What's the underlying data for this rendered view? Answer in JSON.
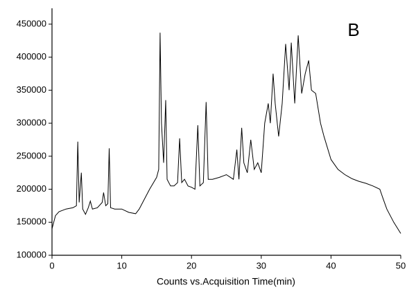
{
  "chart_data": {
    "type": "line",
    "annotation": "B",
    "x_label": "Counts vs.Acquisition Time(min)",
    "xlim": [
      0,
      50
    ],
    "xticks": [
      0,
      10,
      20,
      30,
      40,
      50
    ],
    "ylim": [
      100000,
      474000
    ],
    "yticks": [
      100000,
      150000,
      200000,
      250000,
      300000,
      350000,
      400000,
      450000
    ],
    "grid": false,
    "series": [
      {
        "color": "#000000",
        "x": [
          0,
          0.5,
          1,
          2,
          3,
          3.5,
          3.7,
          3.9,
          4.2,
          4.4,
          4.8,
          5.2,
          5.5,
          5.8,
          6.5,
          7.2,
          7.4,
          7.7,
          8.0,
          8.2,
          8.4,
          9,
          10,
          11,
          12,
          12.5,
          13,
          14,
          15,
          15.3,
          15.5,
          15.7,
          16,
          16.3,
          16.5,
          17,
          17.5,
          18,
          18.3,
          18.6,
          19,
          19.5,
          20,
          20.5,
          20.9,
          21.2,
          21.7,
          22.1,
          22.4,
          23,
          24,
          25,
          26,
          26.5,
          26.8,
          27.2,
          27.5,
          28,
          28.5,
          29,
          29.5,
          30,
          30.5,
          31,
          31.3,
          31.7,
          32,
          32.5,
          33,
          33.5,
          34,
          34.3,
          34.8,
          35.3,
          35.8,
          36.3,
          36.8,
          37.2,
          37.8,
          38.5,
          39,
          40,
          41,
          42,
          43,
          44,
          45,
          46,
          47,
          47.5,
          48,
          49,
          50
        ],
        "values": [
          140000,
          160000,
          166000,
          170000,
          172000,
          175000,
          272000,
          180000,
          225000,
          170000,
          162000,
          172000,
          182000,
          170000,
          172000,
          180000,
          195000,
          175000,
          178000,
          262000,
          172000,
          170000,
          170000,
          165000,
          163000,
          170000,
          180000,
          200000,
          218000,
          230000,
          437000,
          300000,
          240000,
          335000,
          215000,
          205000,
          205000,
          210000,
          277000,
          210000,
          215000,
          205000,
          203000,
          200000,
          297000,
          205000,
          210000,
          332000,
          215000,
          215000,
          218000,
          222000,
          215000,
          260000,
          215000,
          293000,
          240000,
          225000,
          275000,
          230000,
          240000,
          225000,
          300000,
          330000,
          300000,
          375000,
          330000,
          280000,
          330000,
          420000,
          350000,
          422000,
          330000,
          433000,
          345000,
          375000,
          395000,
          350000,
          345000,
          300000,
          280000,
          245000,
          230000,
          222000,
          216000,
          212000,
          209000,
          205000,
          200000,
          185000,
          170000,
          150000,
          133000
        ]
      }
    ]
  }
}
